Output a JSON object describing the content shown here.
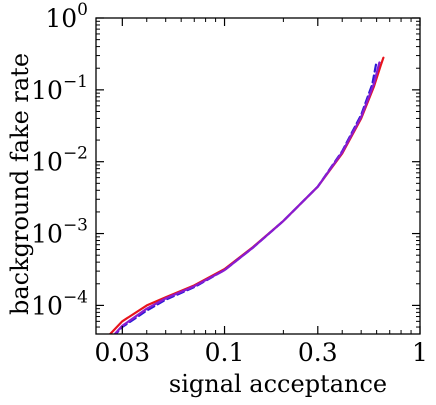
{
  "chart_data": {
    "type": "line",
    "title": "",
    "xlabel": "signal acceptance",
    "ylabel": "background fake rate",
    "xscale": "log",
    "yscale": "log",
    "xlim": [
      0.022,
      1.0
    ],
    "ylim": [
      4e-05,
      1.0
    ],
    "grid": false,
    "legend": "none",
    "x_ticks": [
      {
        "value": 0.03,
        "label": "0.03"
      },
      {
        "value": 0.1,
        "label": "0.1"
      },
      {
        "value": 0.3,
        "label": "0.3"
      },
      {
        "value": 1.0,
        "label": "1"
      }
    ],
    "y_ticks": [
      {
        "value": 0.0001,
        "base": "10",
        "exp": "−4"
      },
      {
        "value": 0.001,
        "base": "10",
        "exp": "−3"
      },
      {
        "value": 0.01,
        "base": "10",
        "exp": "−2"
      },
      {
        "value": 0.1,
        "base": "10",
        "exp": "−1"
      },
      {
        "value": 1.0,
        "base": "10",
        "exp": "0"
      }
    ],
    "series": [
      {
        "color": "#e8141c",
        "style": "solid",
        "points": [
          [
            0.026,
            4e-05
          ],
          [
            0.03,
            6e-05
          ],
          [
            0.04,
            0.0001
          ],
          [
            0.05,
            0.00013
          ],
          [
            0.07,
            0.00019
          ],
          [
            0.1,
            0.00032
          ],
          [
            0.14,
            0.00065
          ],
          [
            0.2,
            0.0015
          ],
          [
            0.3,
            0.0045
          ],
          [
            0.4,
            0.013
          ],
          [
            0.5,
            0.04
          ],
          [
            0.58,
            0.11
          ],
          [
            0.63,
            0.22
          ],
          [
            0.65,
            0.28
          ]
        ]
      },
      {
        "color": "#2a1ad6",
        "style": "dashed",
        "points": [
          [
            0.027,
            3.7e-05
          ],
          [
            0.03,
            5e-05
          ],
          [
            0.04,
            8.5e-05
          ],
          [
            0.05,
            0.00012
          ],
          [
            0.07,
            0.00018
          ],
          [
            0.1,
            0.00031
          ],
          [
            0.14,
            0.00064
          ],
          [
            0.2,
            0.0015
          ],
          [
            0.3,
            0.0045
          ],
          [
            0.4,
            0.014
          ],
          [
            0.5,
            0.045
          ],
          [
            0.57,
            0.12
          ],
          [
            0.6,
            0.25
          ]
        ]
      },
      {
        "color": "#8a1bd0",
        "style": "solid",
        "points": [
          [
            0.027,
            3.8e-05
          ],
          [
            0.03,
            5.2e-05
          ],
          [
            0.04,
            9e-05
          ],
          [
            0.05,
            0.000125
          ],
          [
            0.07,
            0.000185
          ],
          [
            0.1,
            0.00031
          ],
          [
            0.14,
            0.00064
          ],
          [
            0.2,
            0.0015
          ],
          [
            0.3,
            0.0045
          ],
          [
            0.4,
            0.0135
          ],
          [
            0.5,
            0.042
          ],
          [
            0.58,
            0.12
          ],
          [
            0.62,
            0.24
          ]
        ]
      }
    ]
  }
}
